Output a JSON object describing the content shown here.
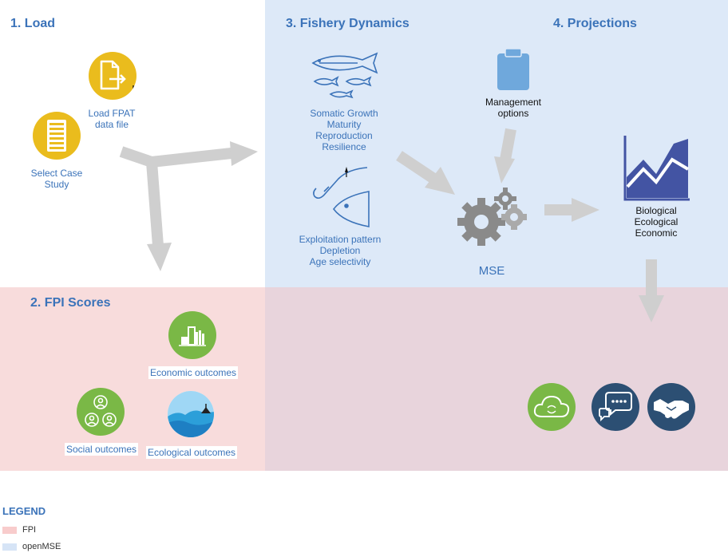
{
  "colors": {
    "fpi": "#f8dcdc",
    "openmse": "#dde9f8",
    "overlap": "#e8d4dc",
    "accent_blue": "#3b73b9",
    "yellow": "#eabc1d",
    "green": "#7ab846",
    "navy": "#2c4f73",
    "gray_arrow": "#cfcfcf",
    "gear": "#8a8a8a",
    "chart_fill": "#4354a3"
  },
  "sections": {
    "load": {
      "title": "1. Load"
    },
    "fpi": {
      "title": "2. FPI Scores"
    },
    "fishery": {
      "title": "3. Fishery Dynamics"
    },
    "projections": {
      "title": "4. Projections"
    }
  },
  "load": {
    "fpat_label_1": "Load FPAT",
    "fpat_label_2": "data file",
    "case_label_1": "Select Case",
    "case_label_2": "Study"
  },
  "fishery": {
    "growth_lines": [
      "Somatic Growth",
      "Maturity",
      "Reproduction",
      "Resilience"
    ],
    "exploitation_lines": [
      "Exploitation pattern",
      "Depletion",
      "Age selectivity"
    ]
  },
  "mse": {
    "label": "MSE",
    "management_1": "Management",
    "management_2": "options"
  },
  "projections": {
    "lines": [
      "Biological",
      "Ecological",
      "Economic"
    ]
  },
  "fpi_scores": {
    "economic": "Economic outcomes",
    "social": "Social outcomes",
    "ecological": "Ecological outcomes"
  },
  "icons": {
    "fpat": "file-export-icon",
    "case": "server-list-icon",
    "fish": "fish-school-icon",
    "hook": "fishing-hook-icon",
    "clipboard": "clipboard-icon",
    "gears": "gears-icon",
    "chart": "area-chart-icon",
    "economic": "bar-chart-icon",
    "social": "people-group-icon",
    "ecological": "ocean-wave-icon",
    "cloud": "cloud-refresh-icon",
    "chat": "chat-bubbles-icon",
    "handshake": "handshake-icon"
  },
  "legend": {
    "title": "LEGEND",
    "fpi": "FPI",
    "openmse": "openMSE"
  }
}
